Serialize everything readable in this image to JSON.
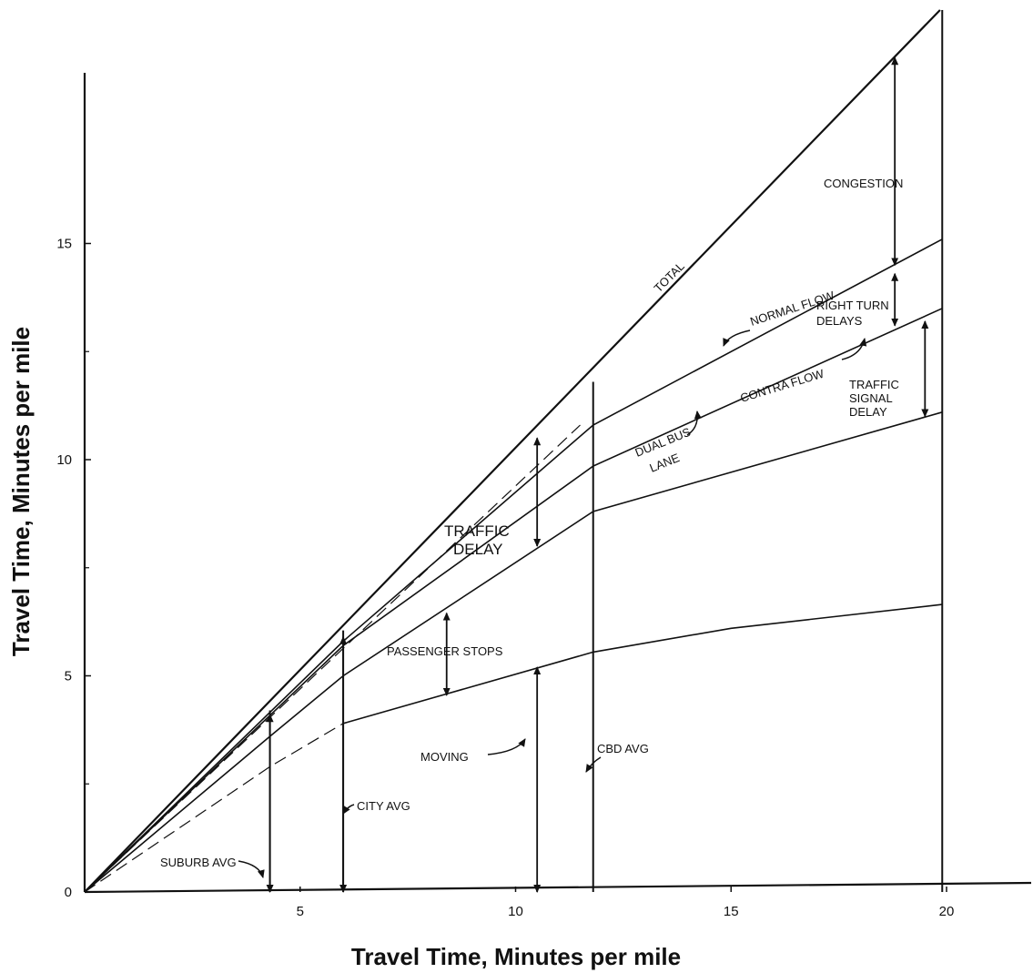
{
  "chart_data": {
    "type": "line",
    "title": "",
    "xlabel": "Travel Time, Minutes per mile",
    "ylabel": "Travel Time, Minutes per mile",
    "xlim": [
      0,
      22
    ],
    "ylim": [
      0,
      20.5
    ],
    "x_ticks": [
      5,
      10,
      15,
      20
    ],
    "x_tick_labels": [
      "5",
      "10",
      "15",
      "20"
    ],
    "x_minor_ticks": [],
    "y_ticks": [
      5,
      10,
      15
    ],
    "y_tick_labels": [
      "5",
      "10",
      "15"
    ],
    "y_minor_ticks": [
      2.5,
      7.5,
      12.5
    ],
    "origin_label": "0",
    "grid": false,
    "legend": "none",
    "series": [
      {
        "name": "TOTAL",
        "dashed": false,
        "points": [
          [
            0,
            0
          ],
          [
            19.85,
            20.4
          ]
        ]
      },
      {
        "name": "NORMAL FLOW",
        "dashed": false,
        "points": [
          [
            0,
            0
          ],
          [
            6.0,
            5.8
          ],
          [
            11.8,
            10.8
          ],
          [
            19.9,
            15.1
          ]
        ]
      },
      {
        "name": "CONTRA FLOW",
        "dashed": false,
        "points": [
          [
            0,
            0
          ],
          [
            6.0,
            5.7
          ],
          [
            11.8,
            9.85
          ],
          [
            19.9,
            13.5
          ]
        ]
      },
      {
        "name": "DUAL BUS LANE",
        "dashed": false,
        "points": [
          [
            0,
            0
          ],
          [
            4.3,
            3.6
          ],
          [
            6.0,
            5.0
          ],
          [
            11.8,
            8.8
          ],
          [
            19.9,
            11.1
          ]
        ]
      },
      {
        "name": "",
        "dashed": false,
        "points": [
          [
            6.0,
            3.9
          ],
          [
            11.8,
            5.55
          ],
          [
            15.0,
            6.1
          ],
          [
            19.9,
            6.65
          ]
        ]
      },
      {
        "name": "",
        "dashed": true,
        "points": [
          [
            0,
            0
          ],
          [
            11.5,
            10.8
          ]
        ]
      },
      {
        "name": "",
        "dashed": true,
        "points": [
          [
            0,
            0
          ],
          [
            4.3,
            2.9
          ],
          [
            6.0,
            3.9
          ]
        ]
      }
    ],
    "vertical_lines": [
      {
        "label": "SUBURB AVG",
        "x": 4.3,
        "y_top": 4.2
      },
      {
        "label": "CITY AVG",
        "x": 6.0,
        "y_top": 6.05
      },
      {
        "label": "CBD AVG",
        "x": 11.8,
        "y_top": 11.8
      },
      {
        "label": "",
        "x": 19.9,
        "y_top": 20.4
      }
    ],
    "arrows": [
      {
        "x": 4.3,
        "y1": 0,
        "y2": 4.1
      },
      {
        "x": 6.0,
        "y1": 0,
        "y2": 5.9
      },
      {
        "x": 10.5,
        "y1": 0,
        "y2": 5.2
      },
      {
        "x": 8.4,
        "y1": 4.55,
        "y2": 6.45
      },
      {
        "x": 10.5,
        "y1": 8.0,
        "y2": 10.5
      },
      {
        "x": 18.8,
        "y1": 14.5,
        "y2": 19.3
      },
      {
        "x": 18.8,
        "y1": 13.1,
        "y2": 14.3
      },
      {
        "x": 19.5,
        "y1": 11.0,
        "y2": 13.2
      }
    ],
    "annotations": {
      "total": "TOTAL",
      "normal_flow": "NORMAL FLOW",
      "contra_flow": "CONTRA FLOW",
      "dual_bus": "DUAL BUS",
      "lane": "LANE",
      "congestion": "CONGESTION",
      "right_turn": "RIGHT TURN",
      "delays": "DELAYS",
      "traffic": "TRAFFIC",
      "signal": "SIGNAL",
      "delay": "DELAY",
      "traffic_big": "TRAFFIC",
      "delay_big": "DELAY",
      "passenger_stops": "PASSENGER STOPS",
      "moving": "MOVING",
      "cbd_avg": "CBD AVG",
      "city_avg": "CITY AVG",
      "suburb_avg": "SUBURB AVG"
    }
  }
}
